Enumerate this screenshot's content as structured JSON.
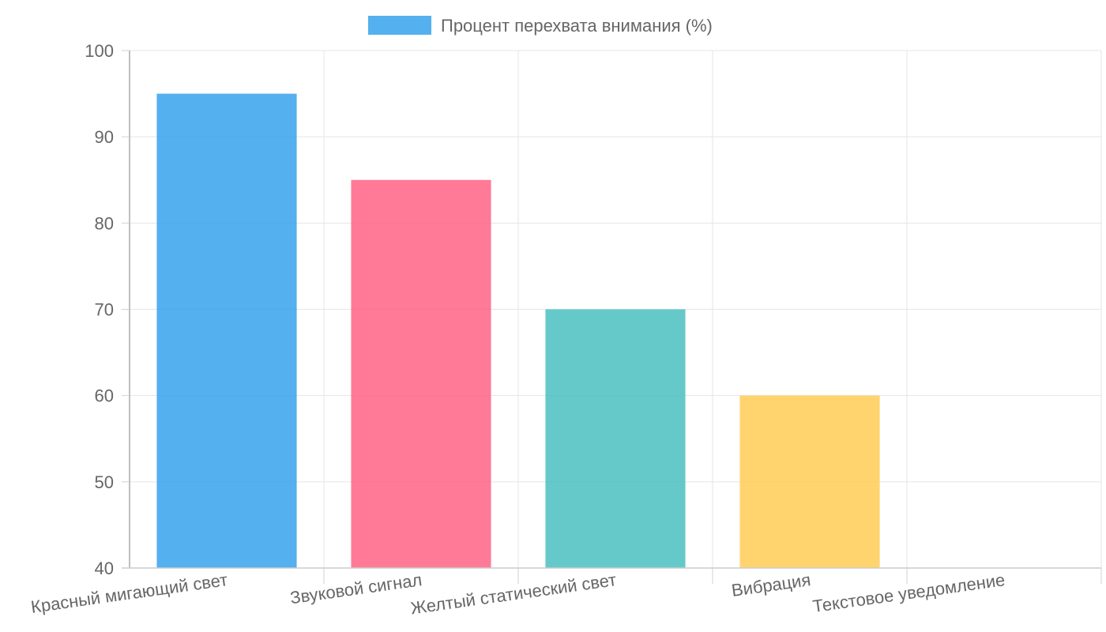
{
  "chart_data": {
    "type": "bar",
    "categories": [
      "Красный мигающий свет",
      "Звуковой сигнал",
      "Желтый статический свет",
      "Вибрация",
      "Текстовое уведомление"
    ],
    "series": [
      {
        "name": "Процент перехвата внимания (%)",
        "values": [
          95,
          85,
          70,
          60,
          40
        ]
      }
    ],
    "bar_colors": [
      "#36a2eb",
      "#ff6384",
      "#4bc0c0",
      "#ffcd56",
      "#9966ff"
    ],
    "legend_color": "#36a2eb",
    "ylim": [
      40,
      100
    ],
    "yticks": [
      40,
      50,
      60,
      70,
      80,
      90,
      100
    ],
    "grid": true,
    "legend_position": "top"
  }
}
